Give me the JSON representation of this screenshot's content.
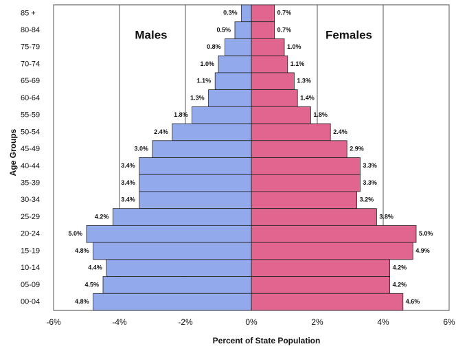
{
  "chart_data": {
    "type": "pyramid",
    "categories": [
      "85 +",
      "80-84",
      "75-79",
      "70-74",
      "65-69",
      "60-64",
      "55-59",
      "50-54",
      "45-49",
      "40-44",
      "35-39",
      "30-34",
      "25-29",
      "20-24",
      "15-19",
      "10-14",
      "05-09",
      "00-04"
    ],
    "series": [
      {
        "name": "Males",
        "color": "#92a9ec",
        "values": [
          -0.3,
          -0.5,
          -0.8,
          -1.0,
          -1.1,
          -1.3,
          -1.8,
          -2.4,
          -3.0,
          -3.4,
          -3.4,
          -3.4,
          -4.2,
          -5.0,
          -4.8,
          -4.4,
          -4.5,
          -4.8
        ],
        "value_labels": [
          "0.3%",
          "0.5%",
          "0.8%",
          "1.0%",
          "1.1%",
          "1.3%",
          "1.8%",
          "2.4%",
          "3.0%",
          "3.4%",
          "3.4%",
          "3.4%",
          "4.2%",
          "5.0%",
          "4.8%",
          "4.4%",
          "4.5%",
          "4.8%"
        ]
      },
      {
        "name": "Females",
        "color": "#e0668f",
        "values": [
          0.7,
          0.7,
          1.0,
          1.1,
          1.3,
          1.4,
          1.8,
          2.4,
          2.9,
          3.3,
          3.3,
          3.2,
          3.8,
          5.0,
          4.9,
          4.2,
          4.2,
          4.6
        ],
        "value_labels": [
          "0.7%",
          "0.7%",
          "1.0%",
          "1.1%",
          "1.3%",
          "1.4%",
          "1.8%",
          "2.4%",
          "2.9%",
          "3.3%",
          "3.3%",
          "3.2%",
          "3.8%",
          "5.0%",
          "4.9%",
          "4.2%",
          "4.2%",
          "4.6%"
        ]
      }
    ],
    "xlabel": "Percent of State Population",
    "ylabel": "Age Groups",
    "xlim": [
      -6,
      6
    ],
    "xticks": [
      {
        "value": -6,
        "label": "-6%"
      },
      {
        "value": -4,
        "label": "-4%"
      },
      {
        "value": -2,
        "label": "-2%"
      },
      {
        "value": 0,
        "label": "0%"
      },
      {
        "value": 2,
        "label": "2%"
      },
      {
        "value": 4,
        "label": "4%"
      },
      {
        "value": 6,
        "label": "6%"
      }
    ],
    "grid": true
  }
}
